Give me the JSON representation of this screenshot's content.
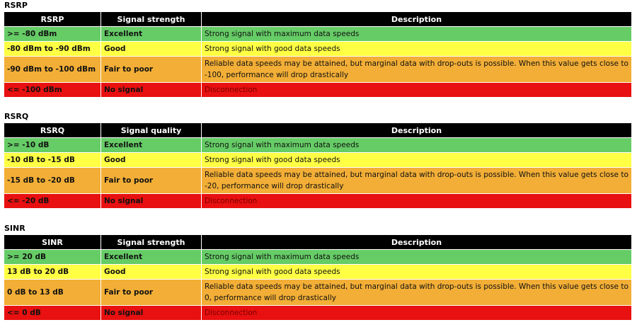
{
  "colors": {
    "header_bg": "#000000",
    "header_fg": "#ffffff",
    "excellent": "#66cc66",
    "good": "#ffff44",
    "fair": "#f2ae36",
    "none": "#e81010",
    "none_desc_text": "#7a0000"
  },
  "sections": [
    {
      "title": "RSRP",
      "headers": [
        "RSRP",
        "Signal strength",
        "Description"
      ],
      "rows": [
        {
          "range": ">= -80 dBm",
          "level": "Excellent",
          "description": "Strong signal with maximum data speeds",
          "tone": "excellent"
        },
        {
          "range": "-80 dBm to -90 dBm",
          "level": "Good",
          "description": "Strong signal with good data speeds",
          "tone": "good"
        },
        {
          "range": "-90 dBm to -100 dBm",
          "level": "Fair to poor",
          "description": "Reliable data speeds may be attained, but marginal data with drop-outs is possible. When this value gets close to -100, performance will drop drastically",
          "tone": "fair"
        },
        {
          "range": "<= -100 dBm",
          "level": "No signal",
          "description": "Disconnection",
          "tone": "none"
        }
      ]
    },
    {
      "title": "RSRQ",
      "headers": [
        "RSRQ",
        "Signal quality",
        "Description"
      ],
      "rows": [
        {
          "range": ">= -10 dB",
          "level": "Excellent",
          "description": "Strong signal with maximum data speeds",
          "tone": "excellent"
        },
        {
          "range": "-10 dB to -15 dB",
          "level": "Good",
          "description": "Strong signal with good data speeds",
          "tone": "good"
        },
        {
          "range": "-15 dB to -20 dB",
          "level": "Fair to poor",
          "description": "Reliable data speeds may be attained, but marginal data with drop-outs is possible. When this value gets close to -20, performance will drop drastically",
          "tone": "fair"
        },
        {
          "range": "<= -20 dB",
          "level": "No signal",
          "description": "Disconnection",
          "tone": "none"
        }
      ]
    },
    {
      "title": "SINR",
      "headers": [
        "SINR",
        "Signal strength",
        "Description"
      ],
      "rows": [
        {
          "range": ">= 20 dB",
          "level": "Excellent",
          "description": "Strong signal with maximum data speeds",
          "tone": "excellent"
        },
        {
          "range": "13 dB to 20 dB",
          "level": "Good",
          "description": "Strong signal with good data speeds",
          "tone": "good"
        },
        {
          "range": "0 dB to 13 dB",
          "level": "Fair to poor",
          "description": "Reliable data speeds may be attained, but marginal data with drop-outs is possible. When this value gets close to 0, performance will drop drastically",
          "tone": "fair"
        },
        {
          "range": "<= 0 dB",
          "level": "No signal",
          "description": "Disconnection",
          "tone": "none"
        }
      ]
    }
  ]
}
